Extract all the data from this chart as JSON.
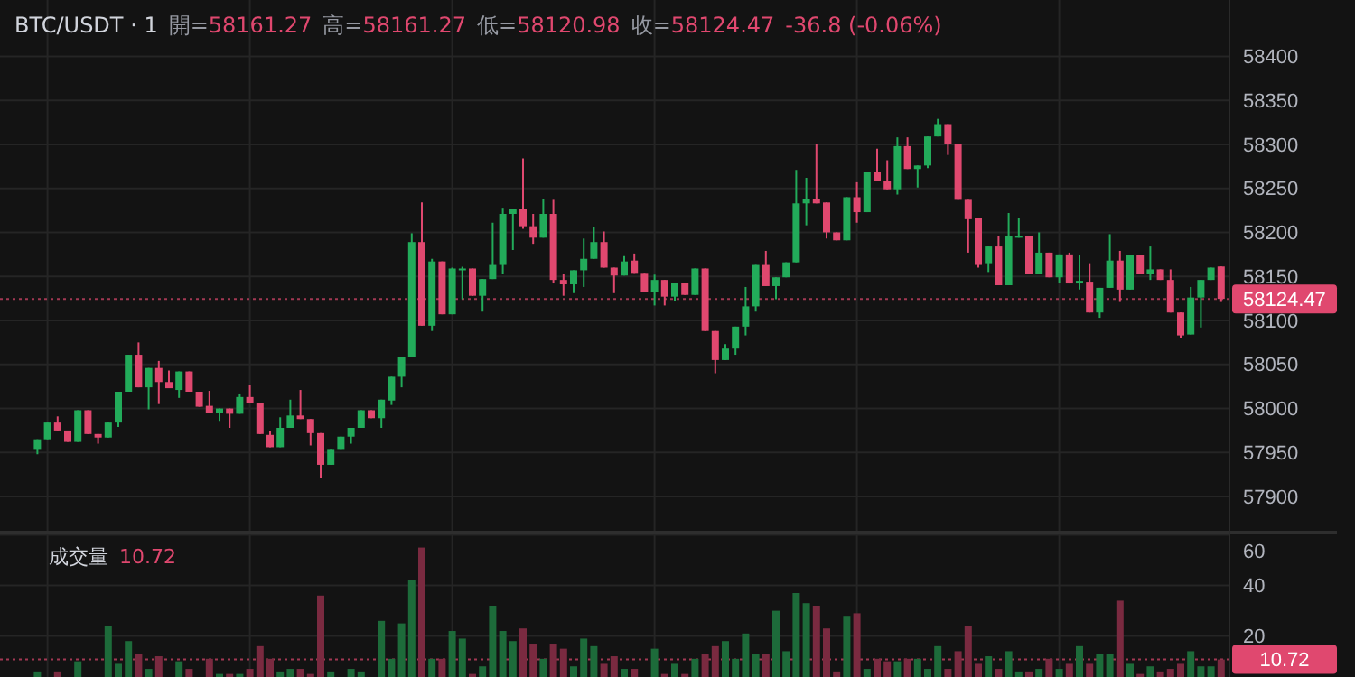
{
  "chart_data": [
    {
      "type": "candlestick",
      "title": "BTC/USDT · 1",
      "annotations": [
        "開=58161.27",
        "高=58161.27",
        "低=58120.98",
        "收=58124.47",
        "-36.8 (-0.06%)"
      ],
      "categories": [
        null,
        null,
        null,
        null,
        null,
        null,
        null,
        null,
        null,
        null,
        null,
        null,
        null,
        null,
        null,
        null,
        null,
        null,
        null,
        null,
        null,
        null,
        null,
        null,
        null,
        null,
        null,
        null,
        null,
        null,
        null,
        null,
        null,
        null,
        null,
        null,
        null,
        null,
        null,
        null,
        null,
        null,
        null,
        null,
        null,
        null,
        null,
        null,
        null,
        null,
        null,
        null,
        null,
        null,
        null,
        null,
        null,
        null,
        null,
        null,
        null,
        null,
        null,
        null,
        null,
        null,
        null,
        null,
        null,
        null,
        null,
        null,
        null,
        null,
        null,
        null,
        null,
        null,
        null,
        null,
        null,
        null,
        null,
        null,
        null,
        null,
        null,
        null,
        null,
        null,
        null,
        null,
        null,
        null,
        null,
        null,
        null,
        null,
        null,
        null,
        null,
        null,
        null,
        null,
        null,
        null,
        null,
        null,
        null,
        null,
        null,
        null,
        null,
        null,
        null,
        null,
        null,
        null
      ],
      "ohlc": [
        [
          57954,
          57965,
          57948,
          57965
        ],
        [
          57965,
          57984,
          57965,
          57984
        ],
        [
          57984,
          57991,
          57975,
          57975
        ],
        [
          57975,
          57975,
          57962,
          57962
        ],
        [
          57962,
          57998,
          57962,
          57998
        ],
        [
          57998,
          57998,
          57971,
          57971
        ],
        [
          57971,
          57971,
          57960,
          57967
        ],
        [
          57967,
          57984,
          57967,
          57984
        ],
        [
          57984,
          58019,
          57979,
          58019
        ],
        [
          58019,
          58061,
          58019,
          58061
        ],
        [
          58061,
          58075,
          58024,
          58024
        ],
        [
          58024,
          58046,
          57999,
          58046
        ],
        [
          58046,
          58054,
          58005,
          58030
        ],
        [
          58030,
          58043,
          58023,
          58023
        ],
        [
          58021,
          58042,
          58012,
          58042
        ],
        [
          58042,
          58042,
          58019,
          58019
        ],
        [
          58019,
          58019,
          58002,
          58002
        ],
        [
          58003,
          58020,
          57995,
          57995
        ],
        [
          57995,
          58000,
          57986,
          58000
        ],
        [
          58000,
          58000,
          57978,
          57994
        ],
        [
          57994,
          58017,
          57994,
          58013
        ],
        [
          58013,
          58027,
          58006,
          58006
        ],
        [
          58006,
          58006,
          57971,
          57971
        ],
        [
          57970,
          57974,
          57956,
          57956
        ],
        [
          57956,
          57990,
          57956,
          57978
        ],
        [
          57978,
          58010,
          57978,
          57992
        ],
        [
          57992,
          58021,
          57988,
          57988
        ],
        [
          57988,
          57988,
          57958,
          57972
        ],
        [
          57972,
          57972,
          57921,
          57936
        ],
        [
          57936,
          57954,
          57936,
          57954
        ],
        [
          57954,
          57968,
          57954,
          57968
        ],
        [
          57968,
          57978,
          57960,
          57978
        ],
        [
          57978,
          57998,
          57978,
          57998
        ],
        [
          57998,
          57998,
          57989,
          57989
        ],
        [
          57989,
          58010,
          57978,
          58010
        ],
        [
          58009,
          58036,
          58004,
          58036
        ],
        [
          58036,
          58058,
          58024,
          58058
        ],
        [
          58058,
          58199,
          58058,
          58189
        ],
        [
          58189,
          58234,
          58094,
          58094
        ],
        [
          58094,
          58170,
          58088,
          58167
        ],
        [
          58167,
          58167,
          58107,
          58107
        ],
        [
          58107,
          58160,
          58107,
          58159
        ],
        [
          58158,
          58161,
          58124,
          58159
        ],
        [
          58159,
          58159,
          58128,
          58128
        ],
        [
          58128,
          58147,
          58110,
          58147
        ],
        [
          58147,
          58211,
          58147,
          58163
        ],
        [
          58163,
          58228,
          58153,
          58221
        ],
        [
          58221,
          58227,
          58180,
          58227
        ],
        [
          58227,
          58284,
          58204,
          58207
        ],
        [
          58207,
          58221,
          58187,
          58194
        ],
        [
          58194,
          58238,
          58194,
          58221
        ],
        [
          58221,
          58237,
          58142,
          58146
        ],
        [
          58146,
          58153,
          58128,
          58141
        ],
        [
          58141,
          58157,
          58131,
          58157
        ],
        [
          58157,
          58193,
          58138,
          58170
        ],
        [
          58170,
          58206,
          58170,
          58189
        ],
        [
          58189,
          58201,
          58160,
          58160
        ],
        [
          58160,
          58160,
          58131,
          58151
        ],
        [
          58151,
          58173,
          58151,
          58167
        ],
        [
          58168,
          58176,
          58154,
          58154
        ],
        [
          58154,
          58154,
          58132,
          58132
        ],
        [
          58132,
          58152,
          58117,
          58146
        ],
        [
          58146,
          58146,
          58117,
          58127
        ],
        [
          58127,
          58143,
          58122,
          58143
        ],
        [
          58143,
          58143,
          58129,
          58129
        ],
        [
          58129,
          58159,
          58129,
          58159
        ],
        [
          58159,
          58159,
          58088,
          58088
        ],
        [
          58088,
          58088,
          58040,
          58055
        ],
        [
          58055,
          58073,
          58055,
          58068
        ],
        [
          58068,
          58093,
          58061,
          58093
        ],
        [
          58093,
          58138,
          58083,
          58116
        ],
        [
          58116,
          58163,
          58110,
          58163
        ],
        [
          58163,
          58179,
          58139,
          58139
        ],
        [
          58139,
          58149,
          58124,
          58149
        ],
        [
          58149,
          58166,
          58149,
          58166
        ],
        [
          58166,
          58271,
          58166,
          58233
        ],
        [
          58233,
          58262,
          58208,
          58238
        ],
        [
          58238,
          58300,
          58233,
          58233
        ],
        [
          58234,
          58234,
          58193,
          58200
        ],
        [
          58200,
          58200,
          58191,
          58191
        ],
        [
          58191,
          58240,
          58191,
          58240
        ],
        [
          58240,
          58257,
          58211,
          58223
        ],
        [
          58223,
          58269,
          58223,
          58269
        ],
        [
          58269,
          58295,
          58258,
          58258
        ],
        [
          58258,
          58282,
          58249,
          58249
        ],
        [
          58249,
          58308,
          58243,
          58298
        ],
        [
          58298,
          58308,
          58272,
          58272
        ],
        [
          58272,
          58276,
          58251,
          58276
        ],
        [
          58276,
          58309,
          58273,
          58309
        ],
        [
          58309,
          58329,
          58309,
          58323
        ],
        [
          58323,
          58323,
          58288,
          58300
        ],
        [
          58300,
          58300,
          58237,
          58237
        ],
        [
          58237,
          58237,
          58177,
          58215
        ],
        [
          58216,
          58216,
          58160,
          58163
        ],
        [
          58165,
          58184,
          58155,
          58184
        ],
        [
          58184,
          58196,
          58140,
          58140
        ],
        [
          58140,
          58222,
          58140,
          58196
        ],
        [
          58195,
          58216,
          58194,
          58196
        ],
        [
          58196,
          58196,
          58153,
          58153
        ],
        [
          58153,
          58200,
          58153,
          58177
        ],
        [
          58177,
          58177,
          58149,
          58149
        ],
        [
          58149,
          58175,
          58142,
          58175
        ],
        [
          58175,
          58177,
          58142,
          58142
        ],
        [
          58142,
          58174,
          58135,
          58145
        ],
        [
          58144,
          58165,
          58109,
          58109
        ],
        [
          58109,
          58137,
          58103,
          58137
        ],
        [
          58137,
          58198,
          58137,
          58168
        ],
        [
          58168,
          58179,
          58121,
          58135
        ],
        [
          58135,
          58174,
          58135,
          58174
        ],
        [
          58174,
          58174,
          58153,
          58153
        ],
        [
          58153,
          58184,
          58146,
          58158
        ],
        [
          58158,
          58158,
          58146,
          58146
        ],
        [
          58146,
          58158,
          58109,
          58109
        ],
        [
          58109,
          58109,
          58080,
          58083
        ],
        [
          58084,
          58138,
          58084,
          58126
        ],
        [
          58126,
          58146,
          58092,
          58146
        ],
        [
          58146,
          58160,
          58146,
          58160
        ],
        [
          58161.27,
          58161.27,
          58120.98,
          58124.47
        ]
      ],
      "colors": [
        "#22ab5a",
        "#22ab5a",
        "#e0486f",
        "#e0486f",
        "#22ab5a",
        "#e0486f",
        "#e0486f",
        "#22ab5a",
        "#22ab5a",
        "#22ab5a",
        "#e0486f",
        "#22ab5a",
        "#e0486f",
        "#e0486f",
        "#22ab5a",
        "#e0486f",
        "#e0486f",
        "#e0486f",
        "#22ab5a",
        "#e0486f",
        "#22ab5a",
        "#e0486f",
        "#e0486f",
        "#e0486f",
        "#22ab5a",
        "#22ab5a",
        "#e0486f",
        "#e0486f",
        "#e0486f",
        "#22ab5a",
        "#22ab5a",
        "#22ab5a",
        "#22ab5a",
        "#e0486f",
        "#22ab5a",
        "#22ab5a",
        "#22ab5a",
        "#22ab5a",
        "#e0486f",
        "#22ab5a",
        "#e0486f",
        "#22ab5a",
        "#22ab5a",
        "#e0486f",
        "#22ab5a",
        "#22ab5a",
        "#22ab5a",
        "#22ab5a",
        "#e0486f",
        "#e0486f",
        "#22ab5a",
        "#e0486f",
        "#e0486f",
        "#22ab5a",
        "#22ab5a",
        "#22ab5a",
        "#e0486f",
        "#e0486f",
        "#22ab5a",
        "#e0486f",
        "#e0486f",
        "#22ab5a",
        "#e0486f",
        "#22ab5a",
        "#e0486f",
        "#22ab5a",
        "#e0486f",
        "#e0486f",
        "#22ab5a",
        "#22ab5a",
        "#22ab5a",
        "#22ab5a",
        "#e0486f",
        "#22ab5a",
        "#22ab5a",
        "#22ab5a",
        "#22ab5a",
        "#e0486f",
        "#e0486f",
        "#e0486f",
        "#22ab5a",
        "#e0486f",
        "#22ab5a",
        "#e0486f",
        "#e0486f",
        "#22ab5a",
        "#e0486f",
        "#22ab5a",
        "#22ab5a",
        "#22ab5a",
        "#e0486f",
        "#e0486f",
        "#e0486f",
        "#e0486f",
        "#22ab5a",
        "#e0486f",
        "#22ab5a",
        "#22ab5a",
        "#e0486f",
        "#22ab5a",
        "#e0486f",
        "#22ab5a",
        "#e0486f",
        "#22ab5a",
        "#e0486f",
        "#22ab5a",
        "#22ab5a",
        "#e0486f",
        "#22ab5a",
        "#e0486f",
        "#22ab5a",
        "#e0486f",
        "#e0486f",
        "#e0486f",
        "#22ab5a",
        "#22ab5a",
        "#22ab5a",
        "#e0486f"
      ],
      "ylim": [
        57857,
        58464
      ],
      "yticks": [
        57900,
        57950,
        58000,
        58050,
        58100,
        58150,
        58200,
        58250,
        58300,
        58350,
        58400
      ],
      "ref_lines": [
        {
          "axis": "y",
          "value": 58124.47,
          "label": "58124.47",
          "color": "#e0486f",
          "line_style": "dotted"
        }
      ],
      "grid": true,
      "tick_labels": "y"
    },
    {
      "type": "bar",
      "title": "成交量",
      "annotations": [
        "10.72"
      ],
      "categories": [
        null,
        null,
        null,
        null,
        null,
        null,
        null,
        null,
        null,
        null,
        null,
        null,
        null,
        null,
        null,
        null,
        null,
        null,
        null,
        null,
        null,
        null,
        null,
        null,
        null,
        null,
        null,
        null,
        null,
        null,
        null,
        null,
        null,
        null,
        null,
        null,
        null,
        null,
        null,
        null,
        null,
        null,
        null,
        null,
        null,
        null,
        null,
        null,
        null,
        null,
        null,
        null,
        null,
        null,
        null,
        null,
        null,
        null,
        null,
        null,
        null,
        null,
        null,
        null,
        null,
        null,
        null,
        null,
        null,
        null,
        null,
        null,
        null,
        null,
        null,
        null,
        null,
        null,
        null,
        null,
        null,
        null,
        null,
        null,
        null,
        null,
        null,
        null,
        null,
        null,
        null,
        null,
        null,
        null,
        null,
        null,
        null,
        null,
        null,
        null,
        null,
        null,
        null,
        null,
        null,
        null,
        null,
        null,
        null,
        null,
        null,
        null,
        null,
        null,
        null,
        null,
        null,
        null
      ],
      "values": [
        6,
        null,
        6,
        null,
        10,
        null,
        null,
        24,
        9,
        18,
        13,
        7,
        12,
        null,
        10,
        7,
        null,
        11,
        5,
        5,
        5,
        7,
        16,
        11,
        6,
        7,
        7,
        5,
        36,
        6,
        null,
        7,
        6,
        null,
        26,
        11,
        25,
        42,
        55,
        11,
        11,
        22,
        19,
        5,
        8,
        32,
        22,
        18,
        23,
        17,
        11,
        17,
        15,
        8,
        19,
        16,
        9,
        12,
        7,
        7,
        null,
        15,
        5,
        9,
        5,
        11,
        13,
        16,
        18,
        11,
        21,
        13,
        13,
        30,
        14,
        37,
        33,
        32,
        23,
        6,
        28,
        29,
        7,
        11,
        10,
        10,
        11,
        11,
        7,
        16,
        7,
        14,
        24,
        9,
        12,
        7,
        14,
        6,
        6,
        7,
        11,
        7,
        9,
        16,
        9,
        13,
        13,
        34,
        9,
        5,
        8,
        6,
        7,
        9,
        14,
        8,
        8,
        10.72
      ],
      "colors": [
        "#1d6b3a",
        null,
        "#7a2a40",
        null,
        "#1d6b3a",
        null,
        null,
        "#1d6b3a",
        "#1d6b3a",
        "#1d6b3a",
        "#7a2a40",
        "#1d6b3a",
        "#7a2a40",
        null,
        "#1d6b3a",
        "#7a2a40",
        null,
        "#7a2a40",
        "#1d6b3a",
        "#7a2a40",
        "#1d6b3a",
        "#7a2a40",
        "#7a2a40",
        "#7a2a40",
        "#1d6b3a",
        "#1d6b3a",
        "#7a2a40",
        "#7a2a40",
        "#7a2a40",
        "#1d6b3a",
        null,
        "#1d6b3a",
        "#1d6b3a",
        null,
        "#1d6b3a",
        "#1d6b3a",
        "#1d6b3a",
        "#1d6b3a",
        "#7a2a40",
        "#1d6b3a",
        "#7a2a40",
        "#1d6b3a",
        "#1d6b3a",
        "#7a2a40",
        "#1d6b3a",
        "#1d6b3a",
        "#1d6b3a",
        "#1d6b3a",
        "#7a2a40",
        "#7a2a40",
        "#1d6b3a",
        "#7a2a40",
        "#7a2a40",
        "#1d6b3a",
        "#1d6b3a",
        "#1d6b3a",
        "#7a2a40",
        "#7a2a40",
        "#1d6b3a",
        "#7a2a40",
        null,
        "#1d6b3a",
        "#7a2a40",
        "#1d6b3a",
        "#7a2a40",
        "#1d6b3a",
        "#7a2a40",
        "#7a2a40",
        "#1d6b3a",
        "#1d6b3a",
        "#1d6b3a",
        "#1d6b3a",
        "#7a2a40",
        "#1d6b3a",
        "#1d6b3a",
        "#1d6b3a",
        "#1d6b3a",
        "#7a2a40",
        "#7a2a40",
        "#7a2a40",
        "#1d6b3a",
        "#7a2a40",
        "#1d6b3a",
        "#7a2a40",
        "#7a2a40",
        "#1d6b3a",
        "#7a2a40",
        "#1d6b3a",
        "#1d6b3a",
        "#1d6b3a",
        "#7a2a40",
        "#7a2a40",
        "#7a2a40",
        "#7a2a40",
        "#1d6b3a",
        "#7a2a40",
        "#1d6b3a",
        "#1d6b3a",
        "#7a2a40",
        "#1d6b3a",
        "#7a2a40",
        "#1d6b3a",
        "#7a2a40",
        "#1d6b3a",
        "#7a2a40",
        "#1d6b3a",
        "#1d6b3a",
        "#7a2a40",
        "#1d6b3a",
        "#7a2a40",
        "#1d6b3a",
        "#7a2a40",
        "#7a2a40",
        "#7a2a40",
        "#1d6b3a",
        "#1d6b3a",
        "#1d6b3a",
        "#7a2a40"
      ],
      "ylim": [
        3.8,
        60.2
      ],
      "yticks": [
        20,
        40,
        60
      ],
      "ref_lines": [
        {
          "axis": "y",
          "value": 10.72,
          "label": "10.72",
          "color": "#e0486f",
          "line_style": "dotted"
        }
      ],
      "grid": true,
      "tick_labels": "y"
    }
  ]
}
